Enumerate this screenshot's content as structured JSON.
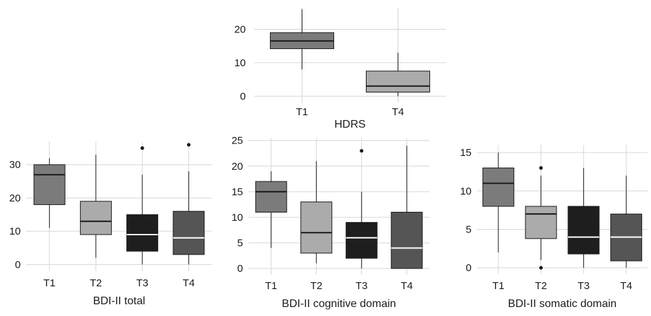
{
  "chart_data": [
    {
      "type": "boxplot",
      "xlabel": "HDRS",
      "ylim": [
        -2,
        26.5
      ],
      "yticks": [
        0,
        10,
        20
      ],
      "grid": true,
      "categories": [
        "T1",
        "T4"
      ],
      "boxes": [
        {
          "label": "T1",
          "min": 8,
          "q1": 14.2,
          "median": 16.5,
          "q3": 19,
          "max": 26,
          "outliers": [],
          "color": "#7b7b7b"
        },
        {
          "label": "T4",
          "min": 0,
          "q1": 1.2,
          "median": 3,
          "q3": 7.5,
          "max": 13,
          "outliers": [],
          "color": "#ababab"
        }
      ]
    },
    {
      "type": "boxplot",
      "xlabel": "BDI-II total",
      "ylim": [
        -2,
        37
      ],
      "yticks": [
        0,
        10,
        20,
        30
      ],
      "grid": true,
      "categories": [
        "T1",
        "T2",
        "T3",
        "T4"
      ],
      "boxes": [
        {
          "label": "T1",
          "min": 11,
          "q1": 18,
          "median": 27,
          "q3": 30,
          "max": 32,
          "outliers": [],
          "color": "#7b7b7b"
        },
        {
          "label": "T2",
          "min": 2,
          "q1": 9,
          "median": 13,
          "q3": 19,
          "max": 33,
          "outliers": [],
          "color": "#ababab"
        },
        {
          "label": "T3",
          "min": 0,
          "q1": 4,
          "median": 9,
          "q3": 15,
          "max": 27,
          "outliers": [
            35
          ],
          "color": "#1e1e1e"
        },
        {
          "label": "T4",
          "min": 0,
          "q1": 3,
          "median": 8,
          "q3": 16,
          "max": 28,
          "outliers": [
            36
          ],
          "color": "#555555"
        }
      ]
    },
    {
      "type": "boxplot",
      "xlabel": "BDI-II cognitive domain",
      "ylim": [
        -1.2,
        25.5
      ],
      "yticks": [
        0,
        5,
        10,
        15,
        20,
        25
      ],
      "grid": true,
      "categories": [
        "T1",
        "T2",
        "T3",
        "T4"
      ],
      "boxes": [
        {
          "label": "T1",
          "min": 4,
          "q1": 11,
          "median": 15,
          "q3": 17,
          "max": 19,
          "outliers": [],
          "color": "#7b7b7b"
        },
        {
          "label": "T2",
          "min": 1,
          "q1": 3,
          "median": 7,
          "q3": 13,
          "max": 21,
          "outliers": [],
          "color": "#ababab"
        },
        {
          "label": "T3",
          "min": 0,
          "q1": 2,
          "median": 6,
          "q3": 9,
          "max": 15,
          "outliers": [
            23
          ],
          "color": "#1e1e1e"
        },
        {
          "label": "T4",
          "min": 0,
          "q1": 0,
          "median": 4,
          "q3": 11,
          "max": 24,
          "outliers": [],
          "color": "#555555"
        }
      ]
    },
    {
      "type": "boxplot",
      "xlabel": "BDI-II somatic domain",
      "ylim": [
        -0.8,
        16
      ],
      "yticks": [
        0,
        5,
        10,
        15
      ],
      "grid": true,
      "categories": [
        "T1",
        "T2",
        "T3",
        "T4"
      ],
      "boxes": [
        {
          "label": "T1",
          "min": 2,
          "q1": 8,
          "median": 11,
          "q3": 13,
          "max": 15,
          "outliers": [],
          "color": "#7b7b7b"
        },
        {
          "label": "T2",
          "min": 1,
          "q1": 3.8,
          "median": 7,
          "q3": 8,
          "max": 12,
          "outliers": [
            13,
            0
          ],
          "color": "#ababab"
        },
        {
          "label": "T3",
          "min": 0,
          "q1": 1.8,
          "median": 4,
          "q3": 8,
          "max": 13,
          "outliers": [],
          "color": "#1e1e1e"
        },
        {
          "label": "T4",
          "min": 0,
          "q1": 0.9,
          "median": 4,
          "q3": 7,
          "max": 12,
          "outliers": [],
          "color": "#555555"
        }
      ]
    }
  ]
}
